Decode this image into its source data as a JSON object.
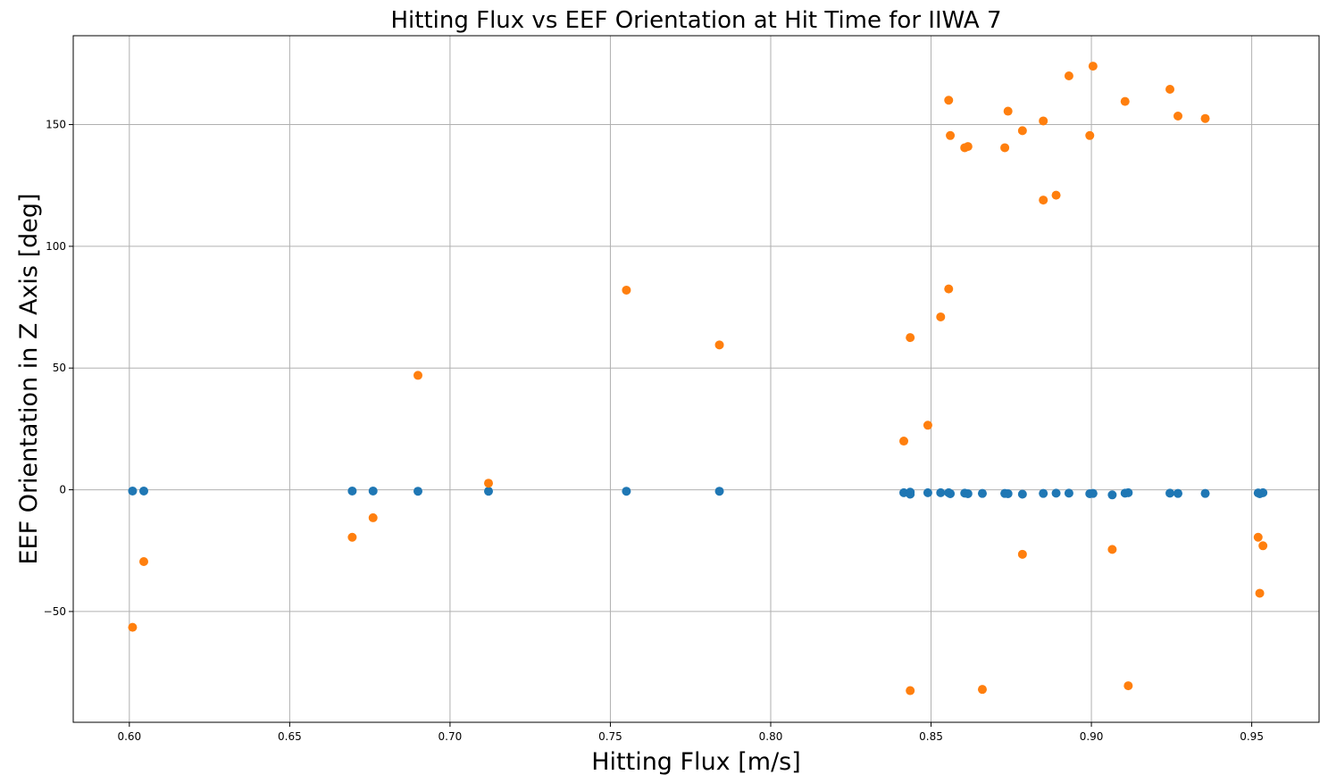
{
  "chart_data": {
    "type": "scatter",
    "title": "Hitting Flux vs EEF Orientation at Hit Time for IIWA 7",
    "xlabel": "Hitting Flux [m/s]",
    "ylabel": "EEF Orientation in Z Axis [deg]",
    "xlim": [
      0.5825,
      0.971
    ],
    "ylim": [
      -95.5,
      186.5
    ],
    "xticks": [
      0.6,
      0.65,
      0.7,
      0.75,
      0.8,
      0.85,
      0.9,
      0.95
    ],
    "xtick_labels": [
      "0.60",
      "0.65",
      "0.70",
      "0.75",
      "0.80",
      "0.85",
      "0.90",
      "0.95"
    ],
    "yticks": [
      -50,
      0,
      50,
      100,
      150
    ],
    "ytick_labels": [
      "−50",
      "0",
      "50",
      "100",
      "150"
    ],
    "grid": true,
    "series": [
      {
        "color": "#1f77b4",
        "points": [
          [
            0.601,
            -0.5
          ],
          [
            0.6045,
            -0.5
          ],
          [
            0.6695,
            -0.5
          ],
          [
            0.676,
            -0.5
          ],
          [
            0.69,
            -0.6
          ],
          [
            0.712,
            -0.6
          ],
          [
            0.755,
            -0.6
          ],
          [
            0.784,
            -0.6
          ],
          [
            0.8415,
            -1.2
          ],
          [
            0.8435,
            -1.0
          ],
          [
            0.8435,
            -1.8
          ],
          [
            0.849,
            -1.2
          ],
          [
            0.853,
            -1.2
          ],
          [
            0.8555,
            -1.2
          ],
          [
            0.856,
            -1.6
          ],
          [
            0.8605,
            -1.4
          ],
          [
            0.8615,
            -1.6
          ],
          [
            0.866,
            -1.5
          ],
          [
            0.873,
            -1.5
          ],
          [
            0.874,
            -1.6
          ],
          [
            0.8785,
            -1.8
          ],
          [
            0.885,
            -1.5
          ],
          [
            0.889,
            -1.4
          ],
          [
            0.893,
            -1.4
          ],
          [
            0.8995,
            -1.6
          ],
          [
            0.9005,
            -1.5
          ],
          [
            0.9065,
            -2.1
          ],
          [
            0.9105,
            -1.4
          ],
          [
            0.9115,
            -1.2
          ],
          [
            0.9245,
            -1.4
          ],
          [
            0.927,
            -1.5
          ],
          [
            0.9355,
            -1.5
          ],
          [
            0.952,
            -1.3
          ],
          [
            0.9525,
            -1.6
          ],
          [
            0.9535,
            -1.2
          ]
        ]
      },
      {
        "color": "#ff7f0e",
        "points": [
          [
            0.601,
            -56.5
          ],
          [
            0.6045,
            -29.5
          ],
          [
            0.6695,
            -19.5
          ],
          [
            0.676,
            -11.5
          ],
          [
            0.69,
            47.0
          ],
          [
            0.712,
            2.7
          ],
          [
            0.755,
            82.0
          ],
          [
            0.784,
            59.5
          ],
          [
            0.8415,
            20.0
          ],
          [
            0.8435,
            62.5
          ],
          [
            0.8435,
            -82.5
          ],
          [
            0.849,
            26.5
          ],
          [
            0.853,
            71.0
          ],
          [
            0.8555,
            82.5
          ],
          [
            0.8555,
            160.0
          ],
          [
            0.856,
            145.5
          ],
          [
            0.8605,
            140.5
          ],
          [
            0.8615,
            141.0
          ],
          [
            0.866,
            -82.0
          ],
          [
            0.873,
            140.5
          ],
          [
            0.874,
            155.5
          ],
          [
            0.8785,
            147.5
          ],
          [
            0.8785,
            -26.5
          ],
          [
            0.885,
            151.5
          ],
          [
            0.885,
            119.0
          ],
          [
            0.889,
            121.0
          ],
          [
            0.893,
            170.0
          ],
          [
            0.8995,
            145.5
          ],
          [
            0.9005,
            174.0
          ],
          [
            0.9065,
            -24.5
          ],
          [
            0.9105,
            159.5
          ],
          [
            0.9115,
            -80.5
          ],
          [
            0.9245,
            164.5
          ],
          [
            0.927,
            153.5
          ],
          [
            0.9355,
            152.5
          ],
          [
            0.952,
            -19.5
          ],
          [
            0.9525,
            -42.5
          ],
          [
            0.9535,
            -23.0
          ]
        ]
      }
    ]
  }
}
